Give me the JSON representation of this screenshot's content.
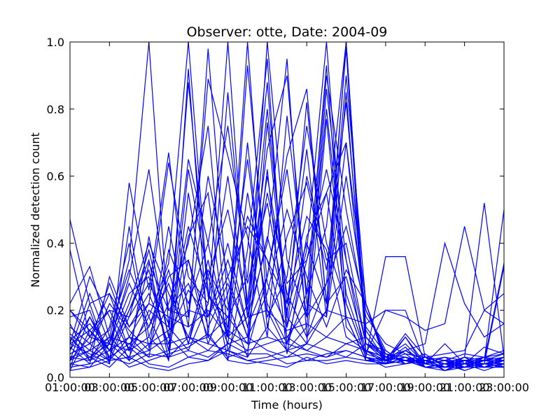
{
  "chart_data": {
    "type": "line",
    "title": "Observer: otte, Date: 2004-09",
    "xlabel": "Time (hours)",
    "ylabel": "Normalized detection count",
    "x_tick_labels": [
      "01:00:00",
      "03:00:00",
      "05:00:00",
      "07:00:00",
      "09:00:00",
      "11:00:00",
      "13:00:00",
      "15:00:00",
      "17:00:00",
      "19:00:00",
      "21:00:00",
      "23:00:00"
    ],
    "y_tick_labels": [
      "0.0",
      "0.2",
      "0.4",
      "0.6",
      "0.8",
      "1.0"
    ],
    "x_hours": [
      1,
      2,
      3,
      4,
      5,
      6,
      7,
      8,
      9,
      10,
      11,
      12,
      13,
      14,
      15,
      16,
      17,
      18,
      19,
      20,
      21,
      22,
      23
    ],
    "xlim": [
      1,
      23
    ],
    "ylim": [
      0,
      1
    ],
    "grid": false,
    "line_color": "#0000ff",
    "series": [
      {
        "values": [
          0.47,
          0.22,
          0.05,
          0.18,
          0.38,
          0.12,
          0.88,
          0.24,
          0.18,
          0.1,
          0.62,
          0.07,
          0.42,
          0.55,
          0.18,
          0.05,
          0.04,
          0.08,
          0.05,
          0.03,
          0.04,
          0.03,
          0.04
        ]
      },
      {
        "values": [
          0.1,
          0.07,
          0.04,
          0.58,
          0.26,
          0.67,
          0.18,
          0.89,
          0.66,
          0.42,
          0.12,
          0.78,
          0.25,
          0.93,
          0.15,
          0.08,
          0.06,
          0.1,
          0.04,
          0.05,
          0.03,
          0.05,
          0.07
        ]
      },
      {
        "values": [
          0.22,
          0.33,
          0.12,
          0.35,
          1.0,
          0.15,
          0.65,
          0.4,
          0.75,
          0.28,
          0.52,
          0.18,
          0.82,
          0.22,
          1.0,
          0.12,
          0.05,
          0.06,
          0.03,
          0.04,
          0.05,
          0.04,
          0.05
        ]
      },
      {
        "values": [
          0.05,
          0.12,
          0.2,
          0.08,
          0.18,
          0.34,
          1.0,
          0.25,
          0.15,
          1.0,
          0.2,
          0.08,
          0.15,
          0.86,
          0.35,
          0.1,
          0.08,
          0.04,
          0.05,
          0.02,
          0.03,
          0.04,
          0.03
        ]
      },
      {
        "values": [
          0.08,
          0.25,
          0.1,
          0.3,
          0.62,
          0.2,
          0.18,
          0.6,
          0.3,
          0.12,
          1.0,
          0.35,
          0.18,
          0.28,
          0.98,
          0.07,
          0.05,
          0.07,
          0.06,
          0.04,
          0.06,
          0.03,
          0.06
        ]
      },
      {
        "values": [
          0.15,
          0.1,
          0.28,
          0.12,
          0.22,
          0.64,
          0.3,
          0.22,
          1.0,
          0.18,
          0.4,
          0.95,
          0.12,
          0.2,
          0.7,
          0.22,
          0.06,
          0.05,
          0.04,
          0.05,
          0.02,
          0.04,
          0.05
        ]
      },
      {
        "values": [
          0.12,
          0.05,
          0.15,
          0.4,
          0.09,
          0.22,
          0.4,
          0.75,
          0.12,
          0.93,
          0.28,
          0.15,
          0.38,
          1.0,
          0.22,
          0.06,
          0.04,
          0.12,
          0.03,
          0.04,
          0.04,
          0.06,
          0.03
        ]
      },
      {
        "values": [
          0.03,
          0.18,
          0.08,
          0.2,
          0.35,
          0.05,
          0.92,
          0.12,
          0.85,
          0.22,
          0.8,
          0.22,
          0.68,
          0.18,
          0.85,
          0.1,
          0.07,
          0.04,
          0.05,
          0.03,
          0.05,
          0.03,
          0.04
        ]
      },
      {
        "values": [
          0.2,
          0.14,
          0.06,
          0.1,
          0.15,
          0.28,
          0.1,
          0.35,
          0.05,
          0.38,
          0.95,
          0.1,
          0.25,
          0.45,
          1.0,
          0.12,
          0.05,
          0.08,
          0.04,
          0.06,
          0.03,
          0.05,
          0.04
        ]
      },
      {
        "values": [
          0.1,
          0.3,
          0.18,
          0.05,
          0.42,
          0.12,
          0.26,
          0.18,
          0.4,
          0.15,
          0.3,
          0.66,
          0.86,
          0.22,
          0.3,
          0.08,
          0.06,
          0.05,
          0.07,
          0.03,
          0.04,
          0.04,
          0.06
        ]
      },
      {
        "values": [
          0.06,
          0.08,
          0.22,
          0.14,
          0.08,
          0.45,
          0.15,
          0.98,
          0.22,
          0.06,
          0.76,
          0.18,
          0.1,
          0.77,
          0.18,
          0.05,
          0.04,
          0.06,
          0.04,
          0.05,
          0.05,
          0.03,
          0.03
        ]
      },
      {
        "values": [
          0.38,
          0.12,
          0.1,
          0.25,
          0.3,
          0.08,
          0.62,
          0.3,
          0.12,
          0.7,
          0.15,
          0.42,
          0.58,
          0.32,
          0.82,
          0.15,
          0.07,
          0.05,
          0.05,
          0.04,
          0.03,
          0.06,
          0.05
        ]
      },
      {
        "values": [
          0.04,
          0.06,
          0.12,
          0.06,
          0.2,
          0.15,
          0.08,
          0.22,
          0.6,
          0.18,
          0.55,
          0.28,
          0.35,
          0.62,
          0.35,
          0.05,
          0.05,
          0.13,
          0.06,
          0.02,
          0.05,
          0.04,
          0.04
        ]
      },
      {
        "values": [
          0.18,
          0.2,
          0.04,
          0.45,
          0.12,
          0.3,
          0.35,
          0.1,
          0.25,
          0.48,
          0.35,
          0.12,
          0.2,
          0.9,
          0.5,
          0.18,
          0.1,
          0.07,
          0.03,
          0.03,
          0.04,
          0.05,
          0.06
        ]
      },
      {
        "values": [
          0.09,
          0.04,
          0.3,
          0.15,
          0.25,
          0.1,
          0.42,
          0.55,
          0.08,
          0.22,
          0.68,
          0.9,
          0.22,
          0.18,
          0.6,
          0.2,
          0.08,
          0.04,
          0.05,
          0.04,
          0.06,
          0.03,
          0.05
        ]
      },
      {
        "values": [
          0.11,
          0.16,
          0.08,
          0.22,
          0.4,
          0.25,
          0.12,
          0.32,
          0.2,
          0.65,
          0.18,
          0.3,
          0.75,
          0.4,
          0.22,
          0.06,
          0.36,
          0.36,
          0.06,
          0.05,
          0.03,
          0.04,
          0.03
        ]
      },
      {
        "values": [
          0.07,
          0.1,
          0.14,
          0.32,
          0.18,
          0.05,
          0.55,
          0.18,
          0.35,
          0.15,
          0.42,
          0.2,
          0.4,
          0.22,
          0.9,
          0.22,
          0.05,
          0.12,
          0.04,
          0.05,
          0.04,
          0.02,
          0.04
        ]
      },
      {
        "values": [
          0.05,
          0.22,
          0.25,
          0.08,
          0.34,
          0.2,
          0.28,
          0.12,
          0.18,
          0.3,
          0.88,
          0.15,
          0.6,
          0.35,
          0.4,
          0.1,
          0.06,
          0.05,
          0.05,
          0.06,
          0.05,
          0.04,
          0.33
        ]
      },
      {
        "values": [
          0.13,
          0.08,
          0.05,
          0.12,
          0.06,
          0.38,
          0.22,
          0.4,
          0.12,
          0.08,
          0.3,
          0.62,
          0.18,
          0.8,
          0.25,
          0.07,
          0.2,
          0.2,
          0.04,
          0.03,
          0.06,
          0.05,
          0.05
        ]
      },
      {
        "values": [
          0.02,
          0.14,
          0.2,
          0.18,
          0.28,
          0.16,
          0.45,
          0.25,
          0.1,
          0.55,
          0.22,
          0.1,
          0.35,
          0.55,
          0.7,
          0.14,
          0.05,
          0.09,
          0.03,
          0.04,
          0.05,
          0.06,
          0.07
        ]
      },
      {
        "values": [
          0.16,
          0.05,
          0.11,
          0.28,
          0.15,
          0.32,
          0.1,
          0.3,
          0.5,
          0.2,
          0.6,
          0.25,
          0.12,
          0.28,
          0.45,
          0.2,
          0.07,
          0.06,
          0.05,
          0.03,
          0.03,
          0.03,
          0.04
        ]
      },
      {
        "values": [
          0.08,
          0.18,
          0.06,
          0.2,
          0.32,
          0.08,
          0.35,
          0.15,
          0.28,
          0.12,
          0.25,
          0.5,
          0.3,
          0.15,
          0.32,
          0.22,
          0.04,
          0.05,
          0.03,
          0.02,
          0.04,
          0.05,
          0.06
        ]
      },
      {
        "values": [
          0.04,
          0.03,
          0.1,
          0.05,
          0.1,
          0.14,
          0.2,
          0.18,
          0.3,
          0.45,
          0.35,
          0.22,
          0.48,
          0.38,
          0.12,
          0.08,
          0.05,
          0.04,
          0.05,
          0.03,
          0.05,
          0.04,
          0.05
        ]
      },
      {
        "values": [
          0.03,
          0.04,
          0.06,
          0.04,
          0.07,
          0.06,
          0.12,
          0.1,
          0.08,
          0.06,
          0.15,
          0.08,
          0.1,
          0.2,
          0.18,
          0.05,
          0.04,
          0.05,
          0.06,
          0.04,
          0.02,
          0.04,
          0.04
        ]
      },
      {
        "values": [
          0.06,
          0.05,
          0.08,
          0.03,
          0.05,
          0.07,
          0.09,
          0.13,
          0.05,
          0.04,
          0.05,
          0.06,
          0.07,
          0.06,
          0.08,
          0.06,
          0.05,
          0.04,
          0.06,
          0.05,
          0.07,
          0.06,
          0.08
        ]
      },
      {
        "values": [
          0.04,
          0.06,
          0.03,
          0.09,
          0.04,
          0.03,
          0.06,
          0.05,
          0.1,
          0.07,
          0.07,
          0.04,
          0.05,
          0.05,
          0.06,
          0.05,
          0.06,
          0.05,
          0.04,
          0.1,
          0.04,
          0.09,
          0.07
        ]
      },
      {
        "values": [
          0.02,
          0.03,
          0.05,
          0.06,
          0.03,
          0.02,
          0.04,
          0.05,
          0.08,
          0.05,
          0.04,
          0.03,
          0.06,
          0.04,
          0.05,
          0.04,
          0.04,
          0.06,
          0.04,
          0.03,
          0.05,
          0.05,
          0.5
        ]
      },
      {
        "values": [
          0.2,
          0.12,
          0.25,
          0.15,
          0.22,
          0.18,
          0.15,
          0.2,
          0.12,
          0.18,
          0.2,
          0.14,
          0.16,
          0.12,
          0.18,
          0.16,
          0.2,
          0.18,
          0.14,
          0.16,
          0.45,
          0.2,
          0.25
        ]
      },
      {
        "values": [
          0.1,
          0.14,
          0.08,
          0.12,
          0.1,
          0.1,
          0.12,
          0.08,
          0.14,
          0.1,
          0.12,
          0.1,
          0.08,
          0.12,
          0.1,
          0.12,
          0.06,
          0.08,
          0.1,
          0.4,
          0.22,
          0.12,
          0.16
        ]
      },
      {
        "values": [
          0.05,
          0.08,
          0.12,
          0.1,
          0.06,
          0.08,
          0.1,
          0.12,
          0.06,
          0.08,
          0.1,
          0.12,
          0.08,
          0.06,
          0.1,
          0.08,
          0.04,
          0.05,
          0.03,
          0.04,
          0.06,
          0.52,
          0.06
        ]
      },
      {
        "values": [
          0.12,
          0.06,
          0.1,
          0.08,
          0.12,
          0.06,
          0.08,
          0.06,
          0.1,
          0.12,
          0.08,
          0.06,
          0.1,
          0.08,
          0.06,
          0.1,
          0.05,
          0.06,
          0.04,
          0.05,
          0.03,
          0.05,
          0.34
        ]
      },
      {
        "values": [
          0.07,
          0.1,
          0.05,
          0.06,
          0.08,
          0.12,
          0.06,
          0.08,
          0.07,
          0.05,
          0.06,
          0.08,
          0.05,
          0.07,
          0.08,
          0.06,
          0.03,
          0.04,
          0.06,
          0.07,
          0.08,
          0.2,
          0.16
        ]
      }
    ]
  }
}
